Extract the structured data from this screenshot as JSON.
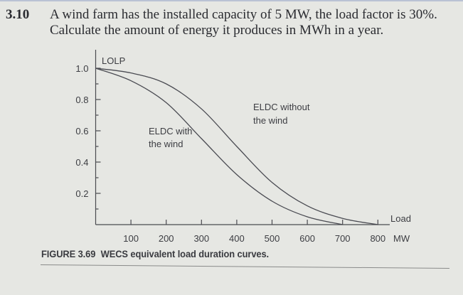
{
  "problem": {
    "number": "3.10",
    "line1": "A wind farm has the installed capacity of 5 MW, the load factor is 30%.",
    "line2": "Calculate the amount of energy it produces in MWh in a year."
  },
  "figure": {
    "label": "FIGURE 3.69",
    "title": "WECS equivalent load duration curves."
  },
  "chart_data": {
    "type": "line",
    "title": "WECS equivalent load duration curves",
    "xlabel": "Load MW",
    "ylabel": "LOLP",
    "xlim": [
      0,
      800
    ],
    "ylim": [
      0,
      1.0
    ],
    "x_ticks": [
      100,
      200,
      300,
      400,
      500,
      600,
      700,
      800
    ],
    "y_ticks": [
      0.2,
      0.4,
      0.6,
      0.8,
      1.0
    ],
    "y_tick_labels": [
      "0.2",
      "0.4",
      "0.6",
      "0.8",
      "1.0"
    ],
    "y_minor_ticks": [
      0.1,
      0.3,
      0.5,
      0.7,
      0.9
    ],
    "grid": false,
    "legend": "inline annotations",
    "series": [
      {
        "name": "ELDC without the wind",
        "x": [
          0,
          100,
          200,
          300,
          400,
          500,
          600,
          700,
          800
        ],
        "y": [
          1.0,
          0.97,
          0.9,
          0.74,
          0.5,
          0.27,
          0.12,
          0.04,
          0.0
        ]
      },
      {
        "name": "ELDC with the wind",
        "x": [
          0,
          100,
          200,
          300,
          400,
          500,
          600,
          700
        ],
        "y": [
          1.0,
          0.92,
          0.78,
          0.55,
          0.32,
          0.15,
          0.05,
          0.0
        ]
      }
    ],
    "annotations": [
      {
        "text": "ELDC without",
        "text2": "the wind"
      },
      {
        "text": "ELDC with",
        "text2": "the wind"
      }
    ],
    "axis_labels": {
      "y_top": "LOLP",
      "x_right_upper": "Load",
      "x_right_lower": "MW"
    }
  }
}
